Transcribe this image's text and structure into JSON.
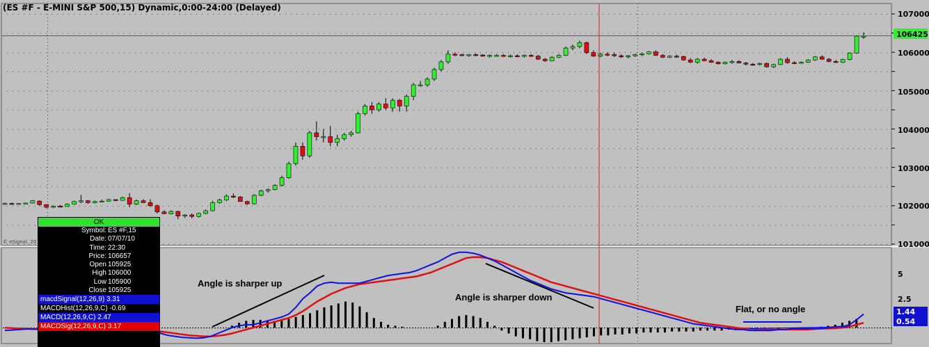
{
  "chart_title": "(ES #F - E-MINI S&P 500,15) Dynamic,0:00-24:00 (Delayed)",
  "watermark": "© eSignal, 20",
  "price_axis": {
    "labels": [
      "107000",
      "106000",
      "105000",
      "104000",
      "103000",
      "102000",
      "101000"
    ],
    "current_price_label": "106425"
  },
  "macd_axis": {
    "labels": [
      "5",
      "2.5"
    ],
    "macd_value_label": "1.44",
    "hist_value_label": "0.54"
  },
  "annotations": {
    "up": "Angle is sharper up",
    "down": "Angle is sharper down",
    "flat": "Flat, or no angle"
  },
  "cursor_window": {
    "ok_label": "OK",
    "fields": [
      {
        "k": "Symbol:",
        "v": "ES #F,15"
      },
      {
        "k": "Date:",
        "v": "07/07/10"
      },
      {
        "k": "Time:",
        "v": "22:30"
      },
      {
        "k": "Price:",
        "v": "106657"
      },
      {
        "k": "Open",
        "v": "105925"
      },
      {
        "k": "High",
        "v": "106000"
      },
      {
        "k": "Low",
        "v": "105900"
      },
      {
        "k": "Close",
        "v": "105925"
      }
    ],
    "indicators": [
      {
        "text": "macdSignal(12,26,9) 3.31",
        "color": "#1010d0"
      },
      {
        "text": "MACDHist(12,26,9,C) -0.69",
        "color": "#000000"
      },
      {
        "text": "MACD(12,26,9,C) 2.47",
        "color": "#1010d0"
      },
      {
        "text": "MACDSig(12,26,9,C) 3.17",
        "color": "#e00000"
      }
    ]
  },
  "colors": {
    "background": "#c0c0c0",
    "up_candle": "#33ee33",
    "down_candle": "#dd1111",
    "macd_line": "#1010e0",
    "signal_line": "#e01010",
    "price_marker": "#33ee33",
    "crosshair": "#dd2222"
  },
  "chart_data": {
    "type": "candlestick",
    "price_ylim": [
      101000,
      107000
    ],
    "candles": [
      [
        102050,
        102080,
        102030,
        102060
      ],
      [
        102060,
        102080,
        102040,
        102050
      ],
      [
        102050,
        102070,
        102030,
        102060
      ],
      [
        102060,
        102080,
        102040,
        102070
      ],
      [
        102070,
        102150,
        102060,
        102130
      ],
      [
        102120,
        102140,
        102000,
        102030
      ],
      [
        102030,
        102040,
        101930,
        101960
      ],
      [
        101960,
        102010,
        101940,
        101990
      ],
      [
        101990,
        102020,
        101960,
        101980
      ],
      [
        101980,
        102060,
        101970,
        102040
      ],
      [
        102040,
        102130,
        102030,
        102110
      ],
      [
        102100,
        102280,
        102070,
        102130
      ],
      [
        102130,
        102150,
        102050,
        102080
      ],
      [
        102080,
        102130,
        102060,
        102110
      ],
      [
        102110,
        102160,
        102090,
        102120
      ],
      [
        102120,
        102180,
        102100,
        102160
      ],
      [
        102160,
        102170,
        102120,
        102140
      ],
      [
        102140,
        102240,
        102130,
        102210
      ],
      [
        102210,
        102330,
        101960,
        102040
      ],
      [
        102040,
        102160,
        102020,
        102130
      ],
      [
        102130,
        102170,
        102080,
        102080
      ],
      [
        102080,
        102170,
        101970,
        102000
      ],
      [
        102000,
        102030,
        101800,
        101840
      ],
      [
        101840,
        101880,
        101780,
        101790
      ],
      [
        101790,
        101880,
        101770,
        101850
      ],
      [
        101850,
        101870,
        101650,
        101730
      ],
      [
        101730,
        101780,
        101680,
        101760
      ],
      [
        101760,
        101800,
        101670,
        101720
      ],
      [
        101720,
        101820,
        101690,
        101800
      ],
      [
        101800,
        101900,
        101780,
        101870
      ],
      [
        101870,
        102130,
        101850,
        102080
      ],
      [
        102080,
        102180,
        102050,
        102150
      ],
      [
        102150,
        102300,
        102120,
        102250
      ],
      [
        102250,
        102320,
        102200,
        102230
      ],
      [
        102230,
        102250,
        102100,
        102110
      ],
      [
        102110,
        102130,
        102020,
        102050
      ],
      [
        102050,
        102300,
        102030,
        102270
      ],
      [
        102270,
        102420,
        102250,
        102390
      ],
      [
        102390,
        102450,
        102340,
        102420
      ],
      [
        102420,
        102560,
        102400,
        102530
      ],
      [
        102530,
        102780,
        102500,
        102730
      ],
      [
        102730,
        103150,
        102700,
        103100
      ],
      [
        103100,
        103650,
        103050,
        103550
      ],
      [
        103550,
        103650,
        103200,
        103300
      ],
      [
        103300,
        103950,
        103250,
        103900
      ],
      [
        103900,
        104200,
        103700,
        103800
      ],
      [
        103800,
        104000,
        103650,
        103800
      ],
      [
        103800,
        104080,
        103550,
        103650
      ],
      [
        103650,
        103850,
        103550,
        103750
      ],
      [
        103750,
        103900,
        103700,
        103850
      ],
      [
        103850,
        103950,
        103800,
        103900
      ],
      [
        103900,
        104450,
        103880,
        104400
      ],
      [
        104400,
        104650,
        104350,
        104600
      ],
      [
        104600,
        104700,
        104400,
        104500
      ],
      [
        104500,
        104700,
        104450,
        104650
      ],
      [
        104650,
        104800,
        104500,
        104550
      ],
      [
        104550,
        104800,
        104450,
        104750
      ],
      [
        104750,
        104780,
        104450,
        104600
      ],
      [
        104600,
        104900,
        104450,
        104850
      ],
      [
        104850,
        105200,
        104750,
        105150
      ],
      [
        105150,
        105250,
        105100,
        105150
      ],
      [
        105150,
        105350,
        105100,
        105300
      ],
      [
        105300,
        105600,
        105250,
        105550
      ],
      [
        105550,
        105800,
        105500,
        105750
      ],
      [
        105750,
        106050,
        105700,
        105950
      ],
      [
        105950,
        106000,
        105900,
        105940
      ],
      [
        105940,
        105960,
        105900,
        105920
      ],
      [
        105920,
        105950,
        105880,
        105940
      ],
      [
        105940,
        105970,
        105900,
        105930
      ],
      [
        105930,
        105950,
        105880,
        105900
      ],
      [
        105900,
        105940,
        105860,
        105920
      ],
      [
        105920,
        105950,
        105880,
        105920
      ],
      [
        105920,
        105950,
        105880,
        105900
      ],
      [
        105900,
        105940,
        105860,
        105910
      ],
      [
        105910,
        105950,
        105870,
        105900
      ],
      [
        105900,
        105940,
        105860,
        105920
      ],
      [
        105920,
        105950,
        105880,
        105900
      ],
      [
        105900,
        105930,
        105800,
        105820
      ],
      [
        105820,
        105850,
        105750,
        105780
      ],
      [
        105780,
        105900,
        105760,
        105870
      ],
      [
        105870,
        105950,
        105850,
        105920
      ],
      [
        105920,
        106150,
        105900,
        106110
      ],
      [
        106110,
        106200,
        106050,
        106150
      ],
      [
        106150,
        106300,
        106100,
        106250
      ],
      [
        106250,
        106280,
        105950,
        105990
      ],
      [
        105990,
        106050,
        105880,
        105900
      ],
      [
        105900,
        105990,
        105870,
        105950
      ],
      [
        105950,
        106000,
        105900,
        105940
      ],
      [
        105940,
        105990,
        105880,
        105910
      ],
      [
        105910,
        105950,
        105850,
        105880
      ],
      [
        105880,
        105930,
        105840,
        105910
      ],
      [
        105910,
        105960,
        105880,
        105940
      ],
      [
        105940,
        105980,
        105900,
        105960
      ],
      [
        105960,
        106030,
        105940,
        106010
      ],
      [
        106010,
        106050,
        105900,
        105920
      ],
      [
        105920,
        105950,
        105850,
        105870
      ],
      [
        105870,
        105920,
        105850,
        105900
      ],
      [
        105900,
        105940,
        105860,
        105890
      ],
      [
        105890,
        105910,
        105780,
        105800
      ],
      [
        105800,
        105850,
        105720,
        105740
      ],
      [
        105740,
        105850,
        105700,
        105820
      ],
      [
        105820,
        105860,
        105760,
        105780
      ],
      [
        105780,
        105820,
        105720,
        105740
      ],
      [
        105740,
        105770,
        105680,
        105700
      ],
      [
        105700,
        105760,
        105680,
        105740
      ],
      [
        105740,
        105800,
        105700,
        105760
      ],
      [
        105760,
        105790,
        105710,
        105720
      ],
      [
        105720,
        105750,
        105660,
        105690
      ],
      [
        105690,
        105720,
        105650,
        105680
      ],
      [
        105680,
        105730,
        105650,
        105710
      ],
      [
        105710,
        105730,
        105600,
        105620
      ],
      [
        105620,
        105700,
        105590,
        105680
      ],
      [
        105680,
        105850,
        105660,
        105820
      ],
      [
        105820,
        105870,
        105700,
        105730
      ],
      [
        105730,
        105770,
        105690,
        105720
      ],
      [
        105720,
        105760,
        105700,
        105740
      ],
      [
        105740,
        105820,
        105720,
        105800
      ],
      [
        105800,
        105900,
        105780,
        105880
      ],
      [
        105880,
        105920,
        105800,
        105820
      ],
      [
        105820,
        105850,
        105740,
        105760
      ],
      [
        105760,
        105800,
        105720,
        105740
      ],
      [
        105740,
        105830,
        105720,
        105810
      ],
      [
        105810,
        106000,
        105790,
        105980
      ],
      [
        105980,
        106450,
        105960,
        106420
      ],
      [
        106420,
        106520,
        106350,
        106420
      ]
    ],
    "macd_ylim": [
      -1.5,
      8
    ],
    "macd": [
      -0.3,
      -0.25,
      -0.2,
      -0.15,
      -0.15,
      -0.2,
      -0.3,
      -0.35,
      -0.4,
      -0.4,
      -0.35,
      -0.3,
      -0.3,
      -0.35,
      -0.3,
      -0.25,
      -0.2,
      -0.15,
      -0.2,
      -0.25,
      -0.3,
      -0.4,
      -0.6,
      -0.8,
      -0.9,
      -1.0,
      -1.05,
      -1.1,
      -1.05,
      -0.9,
      -0.6,
      -0.3,
      0.0,
      0.2,
      0.3,
      0.3,
      0.5,
      0.7,
      0.9,
      1.1,
      1.4,
      2.1,
      3.0,
      3.6,
      4.3,
      4.6,
      4.7,
      4.6,
      4.6,
      4.6,
      4.6,
      4.8,
      5.0,
      5.2,
      5.4,
      5.5,
      5.6,
      5.7,
      5.9,
      6.2,
      6.5,
      6.8,
      7.2,
      7.6,
      7.8,
      7.8,
      7.7,
      7.5,
      7.2,
      6.9,
      6.5,
      6.1,
      5.7,
      5.3,
      4.9,
      4.6,
      4.3,
      4.0,
      3.8,
      3.6,
      3.5,
      3.4,
      3.3,
      3.2,
      3.0,
      2.8,
      2.6,
      2.4,
      2.2,
      2.0,
      1.8,
      1.6,
      1.4,
      1.2,
      1.0,
      0.8,
      0.6,
      0.4,
      0.3,
      0.2,
      0.1,
      0.0,
      -0.1,
      -0.2,
      -0.2,
      -0.3,
      -0.3,
      -0.3,
      -0.3,
      -0.2,
      -0.2,
      -0.1,
      -0.1,
      -0.1,
      -0.1,
      -0.1,
      0.0,
      0.1,
      0.1,
      0.3,
      0.8,
      1.4
    ],
    "signal": [
      0.0,
      -0.05,
      -0.1,
      -0.1,
      -0.15,
      -0.15,
      -0.2,
      -0.25,
      -0.3,
      -0.3,
      -0.3,
      -0.3,
      -0.3,
      -0.3,
      -0.3,
      -0.3,
      -0.25,
      -0.25,
      -0.25,
      -0.25,
      -0.3,
      -0.3,
      -0.4,
      -0.5,
      -0.6,
      -0.7,
      -0.8,
      -0.85,
      -0.9,
      -0.9,
      -0.85,
      -0.75,
      -0.6,
      -0.4,
      -0.2,
      0.0,
      0.2,
      0.4,
      0.6,
      0.8,
      1.0,
      1.3,
      1.7,
      2.2,
      2.7,
      3.1,
      3.5,
      3.8,
      4.1,
      4.3,
      4.5,
      4.6,
      4.7,
      4.8,
      4.9,
      5.0,
      5.1,
      5.2,
      5.3,
      5.5,
      5.7,
      6.0,
      6.3,
      6.6,
      6.9,
      7.2,
      7.3,
      7.3,
      7.2,
      7.0,
      6.8,
      6.5,
      6.2,
      5.9,
      5.6,
      5.3,
      5.0,
      4.7,
      4.5,
      4.3,
      4.1,
      3.9,
      3.7,
      3.5,
      3.3,
      3.1,
      2.9,
      2.7,
      2.5,
      2.3,
      2.1,
      1.9,
      1.7,
      1.5,
      1.3,
      1.1,
      0.9,
      0.7,
      0.5,
      0.4,
      0.3,
      0.2,
      0.1,
      0.0,
      -0.1,
      -0.1,
      -0.2,
      -0.2,
      -0.2,
      -0.2,
      -0.2,
      -0.2,
      -0.2,
      -0.2,
      -0.15,
      -0.1,
      -0.1,
      -0.05,
      0.0,
      0.1,
      0.3,
      0.5
    ],
    "histogram": [
      0,
      0,
      0,
      0,
      0,
      0,
      0,
      0,
      0,
      0,
      0,
      0,
      0,
      0,
      0,
      0,
      0,
      0,
      0,
      0,
      0,
      0,
      0,
      0,
      0,
      0,
      0,
      0,
      0,
      0,
      0,
      0,
      0.2,
      0.5,
      0.7,
      0.8,
      0.8,
      0.7,
      0.7,
      0.8,
      0.9,
      1.1,
      1.3,
      1.5,
      1.8,
      2.1,
      2.3,
      2.5,
      2.7,
      2.6,
      2.2,
      1.6,
      1.0,
      0.6,
      0.3,
      0.2,
      0.1,
      0,
      0,
      0,
      0,
      0.2,
      0.6,
      0.9,
      1.2,
      1.3,
      1.2,
      1.0,
      0.6,
      0.2,
      -0.3,
      -0.6,
      -0.9,
      -1.1,
      -1.2,
      -1.4,
      -1.5,
      -1.5,
      -1.4,
      -1.3,
      -1.2,
      -1.1,
      -1.0,
      -0.9,
      -0.8,
      -0.8,
      -0.7,
      -0.7,
      -0.6,
      -0.6,
      -0.5,
      -0.5,
      -0.5,
      -0.5,
      -0.4,
      -0.4,
      -0.4,
      -0.4,
      -0.3,
      -0.3,
      -0.3,
      -0.3,
      -0.2,
      -0.2,
      -0.2,
      -0.2,
      -0.1,
      -0.1,
      -0.1,
      -0.1,
      0,
      0,
      0,
      0,
      0,
      0.1,
      0.2,
      0.3,
      0.5,
      0.7,
      0.9
    ]
  }
}
